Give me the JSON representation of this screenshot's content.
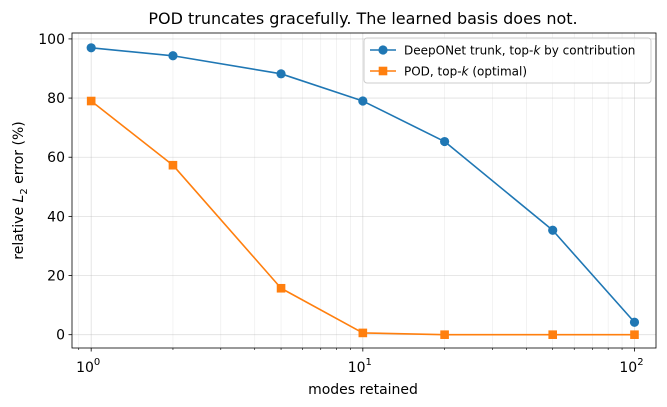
{
  "chart_data": {
    "type": "line",
    "title": "POD truncates gracefully. The learned basis does not.",
    "xlabel": "modes retained",
    "ylabel": "relative L_2 error (%)",
    "xscale": "log",
    "xlim": [
      0.85,
      120
    ],
    "ylim": [
      -4.5,
      102
    ],
    "xticks": [
      {
        "value": 1,
        "base": "10",
        "exp": "0"
      },
      {
        "value": 10,
        "base": "10",
        "exp": "1"
      },
      {
        "value": 100,
        "base": "10",
        "exp": "2"
      }
    ],
    "yticks": [
      0,
      20,
      40,
      60,
      80,
      100
    ],
    "grid": true,
    "legend_position": "top-right",
    "x": [
      1,
      2,
      5,
      10,
      20,
      50,
      100
    ],
    "series": [
      {
        "name": "DeepONet trunk, top-k by contribution",
        "legend_parts": [
          "DeepONet trunk, top-",
          "k",
          " by contribution"
        ],
        "color": "#1f77b4",
        "marker": "circle",
        "values": [
          97,
          94.3,
          88.2,
          79,
          65.3,
          35.3,
          4.2
        ]
      },
      {
        "name": "POD, top-k (optimal)",
        "legend_parts": [
          "POD, top-",
          "k",
          " (optimal)"
        ],
        "color": "#ff7f0e",
        "marker": "square",
        "values": [
          79,
          57.3,
          15.7,
          0.6,
          0,
          0,
          0
        ]
      }
    ]
  }
}
